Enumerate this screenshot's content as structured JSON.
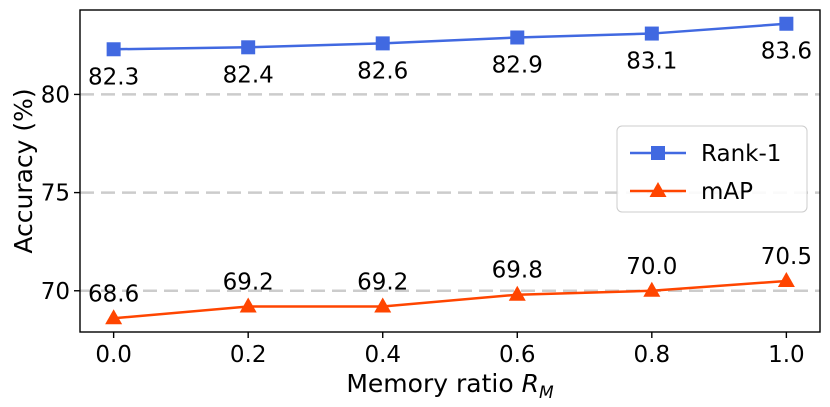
{
  "chart_data": {
    "type": "line",
    "x": [
      0.0,
      0.2,
      0.4,
      0.6,
      0.8,
      1.0
    ],
    "x_tick_labels": [
      "0.0",
      "0.2",
      "0.4",
      "0.6",
      "0.8",
      "1.0"
    ],
    "xlim": [
      -0.05,
      1.05
    ],
    "ylim": [
      67.9,
      84.3
    ],
    "y_ticks": [
      70,
      75,
      80
    ],
    "y_tick_labels": [
      "70",
      "75",
      "80"
    ],
    "xlabel_main": "Memory ratio ",
    "xlabel_var": "R",
    "xlabel_sub": "M",
    "ylabel": "Accuracy (%)",
    "grid": "horizontal dashed at y ticks",
    "legend_position": "right",
    "series": [
      {
        "name": "Rank-1",
        "color": "#4169E1",
        "marker": "square",
        "values": [
          82.3,
          82.4,
          82.6,
          82.9,
          83.1,
          83.6
        ],
        "labels": [
          "82.3",
          "82.4",
          "82.6",
          "82.9",
          "83.1",
          "83.6"
        ],
        "label_placement": "below"
      },
      {
        "name": "mAP",
        "color": "#FF4500",
        "marker": "triangle",
        "values": [
          68.6,
          69.2,
          69.2,
          69.8,
          70.0,
          70.5
        ],
        "labels": [
          "68.6",
          "69.2",
          "69.2",
          "69.8",
          "70.0",
          "70.5"
        ],
        "label_placement": "above"
      }
    ]
  }
}
